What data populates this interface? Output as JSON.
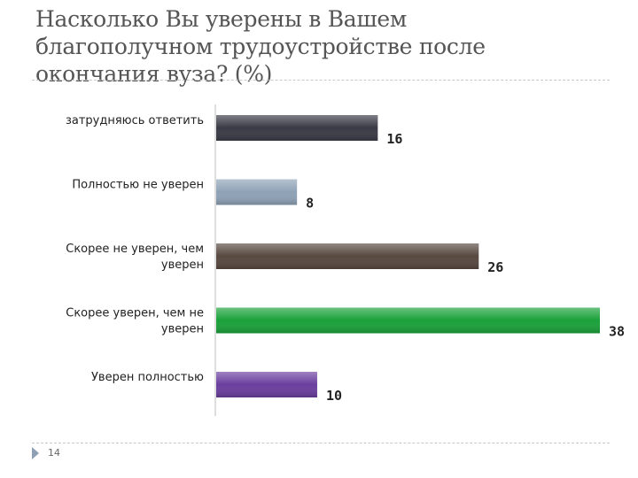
{
  "slide": {
    "title_lines": [
      "Насколько Вы уверены в Вашем",
      "благополучном трудоустройстве после",
      "окончания вуза? (%)"
    ],
    "page_number": "14"
  },
  "chart_data": {
    "type": "bar",
    "orientation": "horizontal",
    "title": "Насколько Вы уверены в Вашем благополучном трудоустройстве после окончания вуза? (%)",
    "xlabel": "",
    "ylabel": "",
    "xlim": [
      0,
      38
    ],
    "grid": false,
    "legend": "none",
    "categories": [
      [
        "затрудняюсь ответить"
      ],
      [
        "Полностью не уверен"
      ],
      [
        "Скорее не уверен, чем",
        "уверен"
      ],
      [
        "Скорее уверен, чем не",
        "уверен"
      ],
      [
        "Уверен полностью"
      ]
    ],
    "values": [
      16,
      8,
      26,
      38,
      10
    ],
    "value_labels": [
      "16",
      "8",
      "26",
      "38",
      "10"
    ],
    "colors": [
      "#3a3a46",
      "#8ea2b6",
      "#574840",
      "#1aa13a",
      "#6a3e9e"
    ]
  }
}
